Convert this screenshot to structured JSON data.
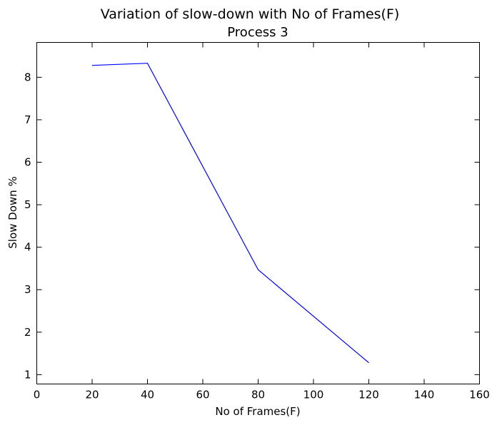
{
  "chart_data": {
    "type": "line",
    "title": "Variation of slow-down with No of Frames(F)",
    "subtitle": "Process 3",
    "xlabel": "No of Frames(F)",
    "ylabel": "Slow Down %",
    "xlim": [
      0,
      160
    ],
    "ylim": [
      0.78,
      8.82
    ],
    "x_ticks": [
      0,
      20,
      40,
      60,
      80,
      100,
      120,
      140,
      160
    ],
    "y_ticks": [
      1,
      2,
      3,
      4,
      5,
      6,
      7,
      8
    ],
    "grid": false,
    "legend": "none",
    "series": [
      {
        "x": [
          20,
          40,
          80,
          120
        ],
        "y": [
          8.28,
          8.33,
          3.47,
          1.28
        ],
        "color": "#0000ff"
      }
    ]
  }
}
